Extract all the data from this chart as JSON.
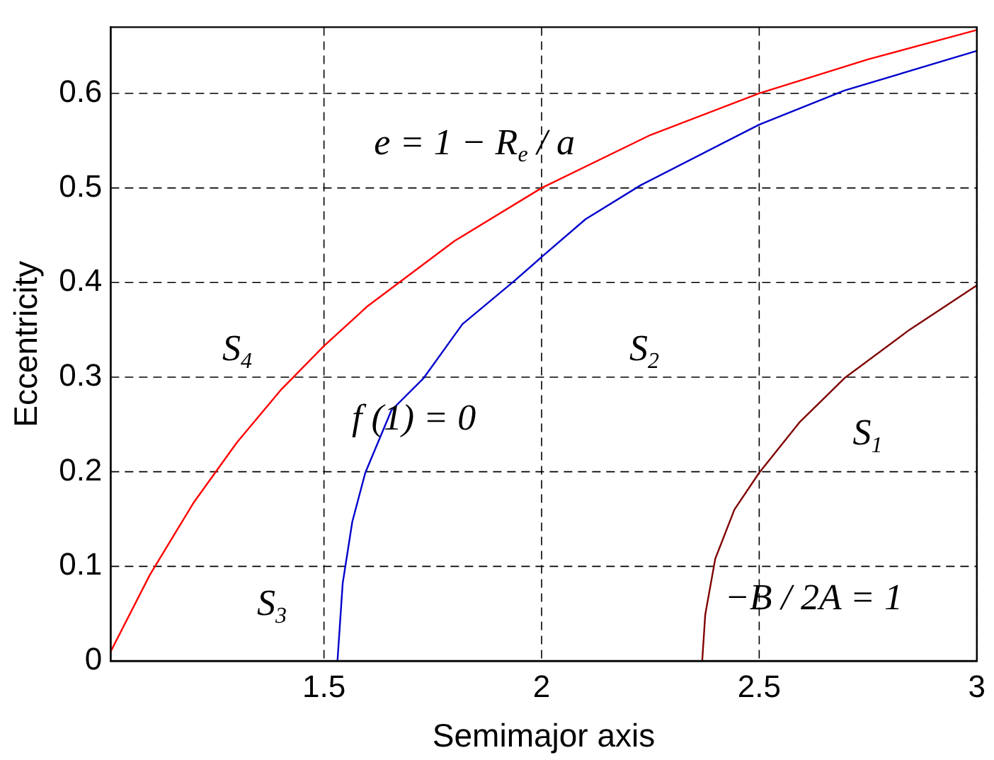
{
  "chart_data": {
    "type": "line",
    "xlabel": "Semimajor axis",
    "ylabel": "Eccentricity",
    "xlim": [
      1.01,
      3
    ],
    "ylim": [
      0,
      0.67
    ],
    "xticks": [
      1.5,
      2,
      2.5,
      3
    ],
    "yticks": [
      0,
      0.1,
      0.2,
      0.3,
      0.4,
      0.5,
      0.6
    ],
    "grid": true,
    "legend": false,
    "marker": "none",
    "line_style": "solid",
    "series": [
      {
        "color": "#ff0000",
        "x": [
          1.01,
          1.1,
          1.2,
          1.3,
          1.4,
          1.5,
          1.6,
          1.8,
          2,
          2.25,
          2.5,
          2.75,
          3
        ],
        "values": [
          0.01,
          0.091,
          0.167,
          0.231,
          0.286,
          0.333,
          0.375,
          0.444,
          0.5,
          0.556,
          0.6,
          0.636,
          0.667
        ]
      },
      {
        "color": "#0000cc",
        "x": [
          1.531,
          1.543,
          1.565,
          1.595,
          1.655,
          1.729,
          1.818,
          1.938,
          2,
          2.101,
          2.228,
          2.5,
          2.696,
          3
        ],
        "values": [
          0,
          0.082,
          0.147,
          0.199,
          0.265,
          0.299,
          0.356,
          0.402,
          0.427,
          0.467,
          0.503,
          0.567,
          0.603,
          0.645
        ]
      },
      {
        "color": "#800000",
        "x": [
          2.369,
          2.376,
          2.399,
          2.443,
          2.5,
          2.592,
          2.696,
          2.845,
          3
        ],
        "values": [
          0,
          0.049,
          0.108,
          0.16,
          0.199,
          0.252,
          0.299,
          0.35,
          0.397
        ]
      }
    ],
    "annotations": [
      "e = 1 − R$_{e}$ / a",
      "S$_{4}$",
      "S$_{2}$",
      "f (1) = 0",
      "S$_{1}$",
      "S$_{3}$",
      "−B / 2A = 1"
    ]
  }
}
